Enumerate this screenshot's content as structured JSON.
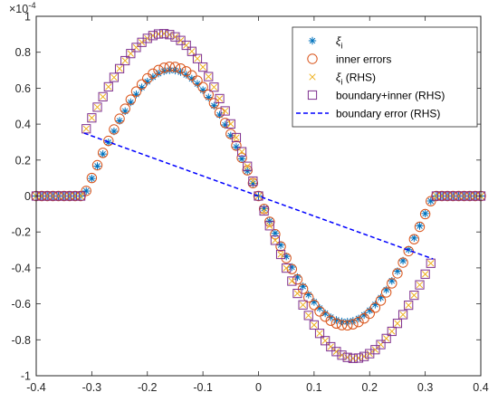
{
  "chart_data": {
    "type": "scatter",
    "title": "",
    "xlabel": "",
    "ylabel": "",
    "xlim": [
      -0.4,
      0.4
    ],
    "ylim": [
      -1,
      1
    ],
    "y_exponent_label": "×10",
    "y_exponent_power": "-4",
    "xticks": [
      "-0.4",
      "-0.3",
      "-0.2",
      "-0.1",
      "0",
      "0.1",
      "0.2",
      "0.3",
      "0.4"
    ],
    "yticks": [
      "-1",
      "-0.8",
      "-0.6",
      "-0.4",
      "-0.2",
      "0",
      "0.2",
      "0.4",
      "0.6",
      "0.8",
      "1"
    ],
    "grid": false,
    "legend_position": "top-right",
    "x_support": [
      -0.314,
      0.314
    ],
    "sample_step": 0.01,
    "series": [
      {
        "name": "ξ",
        "name_subscript": "i",
        "marker": "asterisk",
        "color": "#0072BD",
        "curve": "sine",
        "amplitude": 0.7,
        "offset": 0,
        "slope": 0,
        "outside_value": 0
      },
      {
        "name": "inner errors",
        "marker": "circle",
        "color": "#D95319",
        "curve": "sine",
        "amplitude": 0.72,
        "offset": 0,
        "slope": 0,
        "outside_value": 0
      },
      {
        "name": "ξ",
        "name_subscript": "i",
        "name_suffix": " (RHS)",
        "marker": "x",
        "color": "#EDB120",
        "curve": "sine_plus_linear",
        "amplitude": 0.72,
        "offset": 0,
        "slope": -1.114,
        "outside_value": 0
      },
      {
        "name": "boundary+inner (RHS)",
        "marker": "square",
        "color": "#7E2F8E",
        "curve": "sine_plus_linear",
        "amplitude": 0.72,
        "offset": 0,
        "slope": -1.114,
        "outside_value": 0
      },
      {
        "name": "boundary error (RHS)",
        "marker": "dashed-line",
        "color": "#0000FF",
        "x": [
          -0.314,
          0.314
        ],
        "y": [
          0.35,
          -0.35
        ]
      }
    ]
  }
}
